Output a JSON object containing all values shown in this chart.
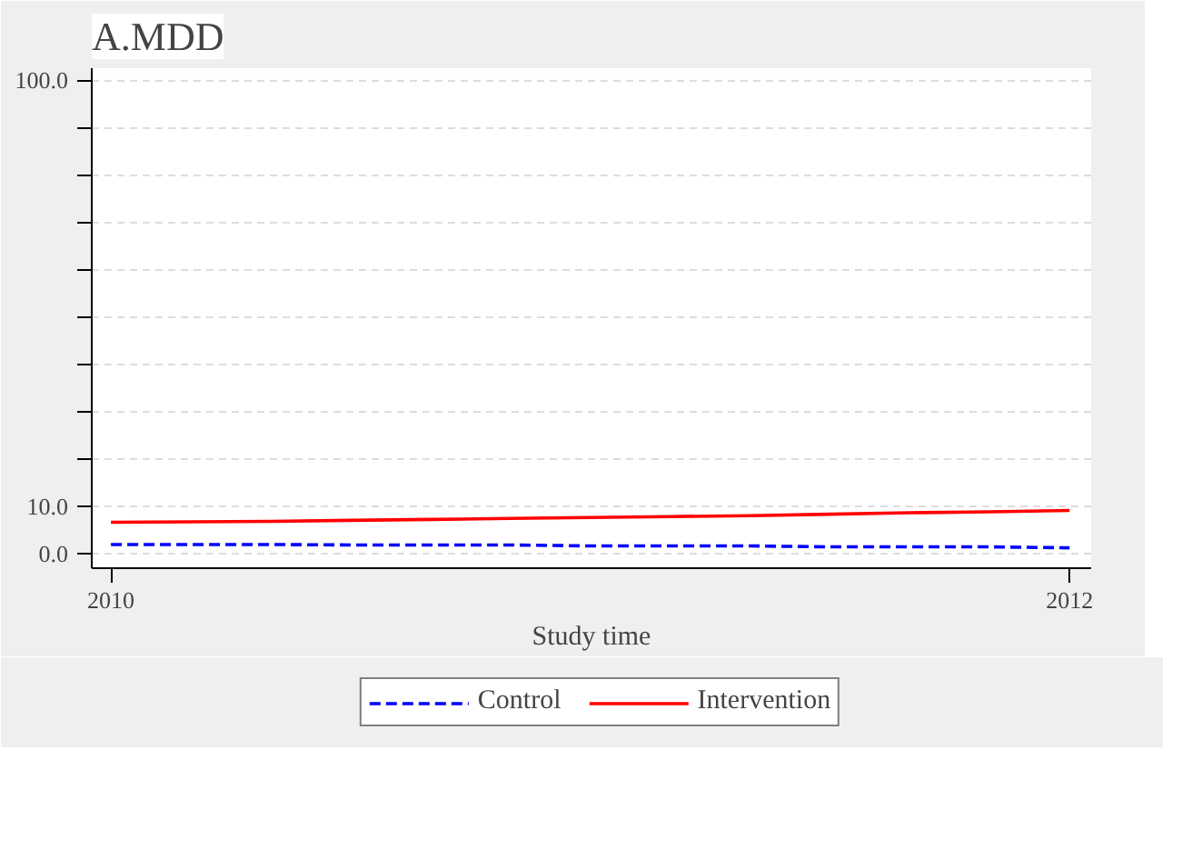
{
  "chart_data": {
    "type": "line",
    "title": "A.MDD",
    "xlabel": "Study time",
    "x": [
      2010,
      2010.1667,
      2010.3333,
      2010.5,
      2010.6667,
      2010.8333,
      2011,
      2011.1667,
      2011.3333,
      2011.5,
      2011.6667,
      2011.8333,
      2012
    ],
    "series": [
      {
        "name": "Control",
        "color": "#0000ff",
        "line_style": "dashed",
        "values": [
          1.9,
          1.9,
          1.9,
          1.8,
          1.8,
          1.8,
          1.6,
          1.6,
          1.6,
          1.4,
          1.4,
          1.4,
          1.2
        ]
      },
      {
        "name": "Intervention",
        "color": "#ff0000",
        "line_style": "solid",
        "values": [
          6.6,
          6.7,
          6.8,
          7.0,
          7.2,
          7.4,
          7.6,
          7.8,
          8.0,
          8.3,
          8.6,
          8.8,
          9.1
        ]
      }
    ],
    "xlim": [
      2009.96,
      2012.045
    ],
    "xticks": [
      2010,
      2012
    ],
    "ylim": [
      -3.1,
      102.5
    ],
    "yticks": [
      {
        "value": 0,
        "label": "0.0"
      },
      {
        "value": 10,
        "label": "10.0"
      },
      {
        "value": 20,
        "label": null
      },
      {
        "value": 30,
        "label": null
      },
      {
        "value": 40,
        "label": null
      },
      {
        "value": 50,
        "label": null
      },
      {
        "value": 60,
        "label": null
      },
      {
        "value": 70,
        "label": null
      },
      {
        "value": 80,
        "label": null
      },
      {
        "value": 90,
        "label": null
      },
      {
        "value": 100,
        "label": "100.0"
      }
    ],
    "grid": "y",
    "legend": "bottom"
  }
}
